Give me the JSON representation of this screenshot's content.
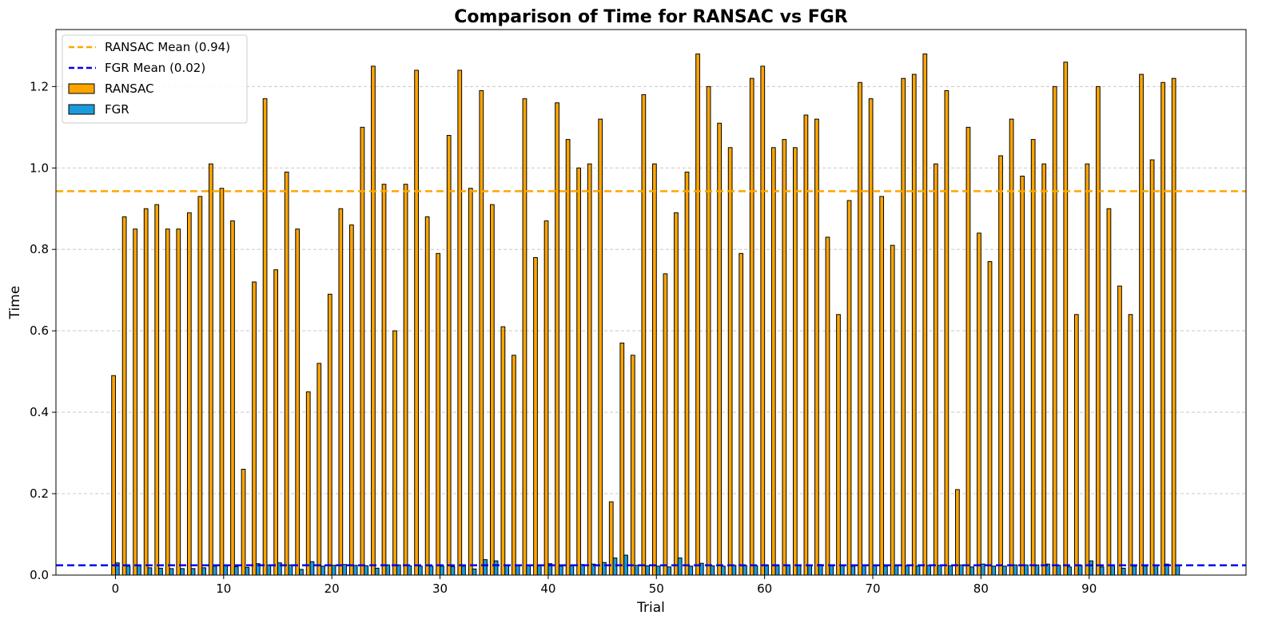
{
  "chart_data": {
    "type": "bar",
    "title": "Comparison of Time for RANSAC vs FGR",
    "xlabel": "Trial",
    "ylabel": "Time",
    "xlim": [
      -5.5,
      104.5
    ],
    "ylim": [
      0,
      1.34
    ],
    "x_ticks": [
      0,
      10,
      20,
      30,
      40,
      50,
      60,
      70,
      80,
      90
    ],
    "y_ticks": [
      0.0,
      0.2,
      0.4,
      0.6,
      0.8,
      1.0,
      1.2
    ],
    "grid": "horizontal dashed",
    "legend_position": "top-left",
    "series": [
      {
        "name": "RANSAC",
        "color": "#FFA500",
        "values": [
          0.49,
          0.88,
          0.85,
          0.9,
          0.91,
          0.85,
          0.85,
          0.89,
          0.93,
          1.01,
          0.95,
          0.87,
          0.26,
          0.72,
          1.17,
          0.75,
          0.99,
          0.85,
          0.45,
          0.52,
          0.69,
          0.9,
          0.86,
          1.1,
          1.25,
          0.96,
          0.6,
          0.96,
          1.24,
          0.88,
          0.79,
          1.08,
          1.24,
          0.95,
          1.19,
          0.91,
          0.61,
          0.54,
          1.17,
          0.78,
          0.87,
          1.16,
          1.07,
          1.0,
          1.01,
          1.12,
          0.18,
          0.57,
          0.54,
          1.18,
          1.01,
          0.74,
          0.89,
          0.99,
          1.28,
          1.2,
          1.11,
          1.05,
          0.79,
          1.22,
          1.25,
          1.05,
          1.07,
          1.05,
          1.13,
          1.12,
          0.83,
          0.64,
          0.92,
          1.21,
          1.17,
          0.93,
          0.81,
          1.22,
          1.23,
          1.28,
          1.01,
          1.19,
          0.21,
          1.1,
          0.84,
          0.77,
          1.03,
          1.12,
          0.98,
          1.07,
          1.01,
          1.2,
          1.26,
          0.64,
          1.01,
          1.2,
          0.9,
          0.71,
          0.64,
          1.23,
          1.02,
          1.21,
          1.22
        ]
      },
      {
        "name": "FGR",
        "color": "#1A9BDB",
        "values": [
          0.03,
          0.022,
          0.024,
          0.018,
          0.017,
          0.016,
          0.016,
          0.016,
          0.018,
          0.022,
          0.024,
          0.021,
          0.019,
          0.028,
          0.025,
          0.03,
          0.025,
          0.014,
          0.033,
          0.022,
          0.024,
          0.026,
          0.024,
          0.023,
          0.017,
          0.025,
          0.025,
          0.023,
          0.022,
          0.022,
          0.022,
          0.021,
          0.022,
          0.015,
          0.038,
          0.035,
          0.024,
          0.023,
          0.025,
          0.025,
          0.028,
          0.022,
          0.024,
          0.026,
          0.027,
          0.031,
          0.042,
          0.049,
          0.024,
          0.023,
          0.022,
          0.02,
          0.042,
          0.022,
          0.029,
          0.023,
          0.022,
          0.024,
          0.024,
          0.023,
          0.025,
          0.025,
          0.025,
          0.024,
          0.023,
          0.026,
          0.024,
          0.023,
          0.022,
          0.024,
          0.023,
          0.022,
          0.024,
          0.023,
          0.022,
          0.024,
          0.024,
          0.023,
          0.025,
          0.02,
          0.027,
          0.022,
          0.022,
          0.025,
          0.025,
          0.025,
          0.027,
          0.024,
          0.02,
          0.024,
          0.035,
          0.02,
          0.025,
          0.017,
          0.022,
          0.022,
          0.025,
          0.027,
          0.024
        ]
      }
    ],
    "reference_lines": [
      {
        "label": "RANSAC Mean (0.94)",
        "value": 0.943,
        "color": "#FFA500",
        "style": "dashed"
      },
      {
        "label": "FGR Mean (0.02)",
        "value": 0.024,
        "color": "#0000EE",
        "style": "dashed"
      }
    ]
  }
}
